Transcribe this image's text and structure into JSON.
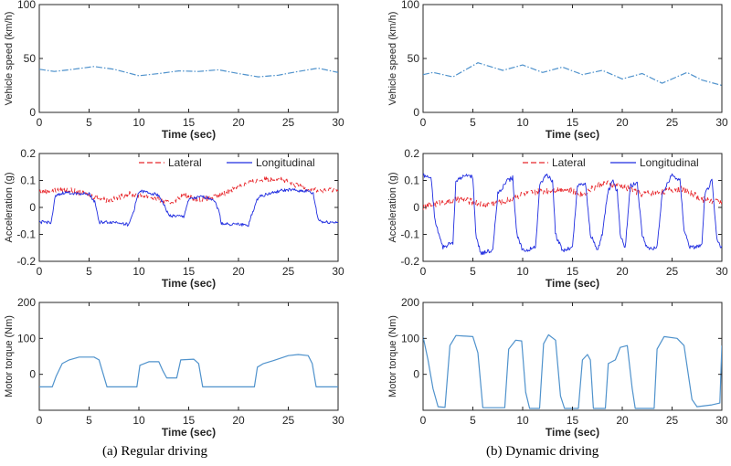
{
  "chart_data": [
    {
      "id": "a1",
      "type": "line",
      "xlabel": "Time (sec)",
      "ylabel": "Vehicle speed (km/h)",
      "xlim": [
        0,
        30
      ],
      "ylim": [
        0,
        100
      ],
      "xticks": [
        0,
        5,
        10,
        15,
        20,
        25,
        30
      ],
      "yticks": [
        0,
        50,
        100
      ],
      "series": [
        {
          "color": "#4f92cc",
          "dash": "dashdot",
          "noise": 0,
          "points": [
            [
              0,
              40
            ],
            [
              1.5,
              38
            ],
            [
              3,
              39.5
            ],
            [
              5.5,
              42.5
            ],
            [
              7.5,
              40
            ],
            [
              10,
              34
            ],
            [
              12,
              36
            ],
            [
              14,
              38.5
            ],
            [
              16,
              38
            ],
            [
              18,
              39.5
            ],
            [
              20,
              36
            ],
            [
              22,
              33
            ],
            [
              24,
              34.5
            ],
            [
              26,
              38
            ],
            [
              28,
              41
            ],
            [
              30,
              37
            ]
          ]
        }
      ]
    },
    {
      "id": "a2",
      "type": "line",
      "xlabel": "Time (sec)",
      "ylabel": "Acceleration (g)",
      "xlim": [
        0,
        30
      ],
      "ylim": [
        -0.2,
        0.2
      ],
      "xticks": [
        0,
        5,
        10,
        15,
        20,
        25,
        30
      ],
      "yticks": [
        -0.2,
        -0.1,
        0,
        0.1,
        0.2
      ],
      "legend": {
        "position": "top-right",
        "entries": [
          "Lateral",
          "Longitudinal"
        ]
      },
      "series": [
        {
          "name": "Lateral",
          "color": "#e8262b",
          "dash": "dashed",
          "noise": 0.01,
          "points": [
            [
              0,
              0.06
            ],
            [
              3,
              0.065
            ],
            [
              5,
              0.045
            ],
            [
              7,
              0.025
            ],
            [
              9,
              0.05
            ],
            [
              11,
              0.04
            ],
            [
              13,
              0.015
            ],
            [
              14.5,
              0.045
            ],
            [
              16,
              0.03
            ],
            [
              18,
              0.04
            ],
            [
              20,
              0.08
            ],
            [
              22,
              0.1
            ],
            [
              24,
              0.11
            ],
            [
              25.5,
              0.085
            ],
            [
              27,
              0.07
            ],
            [
              28.5,
              0.06
            ],
            [
              30,
              0.07
            ]
          ]
        },
        {
          "name": "Longitudinal",
          "color": "#1f2ce0",
          "dash": "solid",
          "noise": 0.006,
          "points": [
            [
              0,
              -0.055
            ],
            [
              1.2,
              -0.055
            ],
            [
              1.6,
              0.04
            ],
            [
              2.5,
              0.055
            ],
            [
              5,
              0.05
            ],
            [
              5.6,
              0.02
            ],
            [
              6,
              -0.055
            ],
            [
              8,
              -0.055
            ],
            [
              9,
              -0.065
            ],
            [
              9.5,
              -0.01
            ],
            [
              10,
              0.06
            ],
            [
              11,
              0.055
            ],
            [
              12,
              0.045
            ],
            [
              12.5,
              0.01
            ],
            [
              13,
              -0.03
            ],
            [
              14.5,
              -0.035
            ],
            [
              15,
              0.03
            ],
            [
              16.5,
              0.04
            ],
            [
              17.5,
              0.03
            ],
            [
              18,
              -0.01
            ],
            [
              18.3,
              -0.06
            ],
            [
              21,
              -0.065
            ],
            [
              21.4,
              -0.02
            ],
            [
              22,
              0.04
            ],
            [
              24,
              0.06
            ],
            [
              25,
              0.065
            ],
            [
              27,
              0.06
            ],
            [
              27.5,
              0.05
            ],
            [
              28,
              -0.045
            ],
            [
              28.5,
              -0.055
            ],
            [
              30,
              -0.055
            ]
          ]
        }
      ]
    },
    {
      "id": "a3",
      "type": "line",
      "xlabel": "Time (sec)",
      "ylabel": "Motor torque (Nm)",
      "xlim": [
        0,
        30
      ],
      "ylim": [
        -100,
        200
      ],
      "xticks": [
        0,
        5,
        10,
        15,
        20,
        25,
        30
      ],
      "yticks": [
        0,
        100,
        200
      ],
      "series": [
        {
          "color": "#4f92cc",
          "dash": "solid",
          "noise": 0,
          "points": [
            [
              0,
              -35
            ],
            [
              1.3,
              -35
            ],
            [
              1.7,
              -5
            ],
            [
              2.3,
              30
            ],
            [
              3,
              40
            ],
            [
              4,
              48
            ],
            [
              5.5,
              48
            ],
            [
              6,
              40
            ],
            [
              6.8,
              -35
            ],
            [
              9.8,
              -35
            ],
            [
              10.1,
              25
            ],
            [
              11,
              35
            ],
            [
              12,
              35
            ],
            [
              12.4,
              10
            ],
            [
              12.8,
              -10
            ],
            [
              13.8,
              -10
            ],
            [
              14.2,
              40
            ],
            [
              15.5,
              42
            ],
            [
              16,
              30
            ],
            [
              16.4,
              -35
            ],
            [
              21.6,
              -35
            ],
            [
              21.9,
              20
            ],
            [
              22.5,
              30
            ],
            [
              23.5,
              38
            ],
            [
              25,
              52
            ],
            [
              26,
              55
            ],
            [
              27,
              52
            ],
            [
              27.4,
              30
            ],
            [
              27.8,
              -35
            ],
            [
              30,
              -35
            ]
          ]
        }
      ]
    },
    {
      "id": "b1",
      "type": "line",
      "xlabel": "Time (sec)",
      "ylabel": "Vehicle speed (km/h)",
      "xlim": [
        0,
        30
      ],
      "ylim": [
        0,
        100
      ],
      "xticks": [
        0,
        5,
        10,
        15,
        20,
        25,
        30
      ],
      "yticks": [
        0,
        50,
        100
      ],
      "series": [
        {
          "color": "#4f92cc",
          "dash": "dashdot",
          "noise": 0,
          "points": [
            [
              0,
              35
            ],
            [
              1,
              37
            ],
            [
              3,
              33
            ],
            [
              5.5,
              46
            ],
            [
              8,
              39
            ],
            [
              10,
              44
            ],
            [
              12,
              37
            ],
            [
              14,
              42
            ],
            [
              16,
              35
            ],
            [
              18,
              39
            ],
            [
              20,
              31
            ],
            [
              22,
              36
            ],
            [
              24,
              27
            ],
            [
              26.5,
              37
            ],
            [
              28,
              30
            ],
            [
              30,
              25
            ]
          ]
        }
      ]
    },
    {
      "id": "b2",
      "type": "line",
      "xlabel": "Time (sec)",
      "ylabel": "Acceleration (g)",
      "xlim": [
        0,
        30
      ],
      "ylim": [
        -0.2,
        0.2
      ],
      "xticks": [
        0,
        5,
        10,
        15,
        20,
        25,
        30
      ],
      "yticks": [
        -0.2,
        -0.1,
        0,
        0.1,
        0.2
      ],
      "legend": {
        "position": "top-right",
        "entries": [
          "Lateral",
          "Longitudinal"
        ]
      },
      "series": [
        {
          "name": "Lateral",
          "color": "#e8262b",
          "dash": "dashed",
          "noise": 0.012,
          "points": [
            [
              0,
              0.0
            ],
            [
              2,
              0.02
            ],
            [
              4,
              0.03
            ],
            [
              6,
              0.01
            ],
            [
              8,
              0.02
            ],
            [
              10,
              0.05
            ],
            [
              12,
              0.06
            ],
            [
              14,
              0.07
            ],
            [
              16,
              0.05
            ],
            [
              18,
              0.09
            ],
            [
              20,
              0.08
            ],
            [
              22,
              0.05
            ],
            [
              24,
              0.06
            ],
            [
              26,
              0.07
            ],
            [
              28,
              0.03
            ],
            [
              30,
              0.02
            ]
          ]
        },
        {
          "name": "Longitudinal",
          "color": "#1f2ce0",
          "dash": "solid",
          "noise": 0.008,
          "points": [
            [
              0,
              0.12
            ],
            [
              0.8,
              0.11
            ],
            [
              1.2,
              -0.05
            ],
            [
              2,
              -0.15
            ],
            [
              3,
              -0.13
            ],
            [
              3.3,
              0.1
            ],
            [
              4.5,
              0.12
            ],
            [
              5,
              0.11
            ],
            [
              5.3,
              -0.1
            ],
            [
              5.8,
              -0.17
            ],
            [
              7,
              -0.16
            ],
            [
              7.5,
              0.05
            ],
            [
              8.5,
              0.1
            ],
            [
              9,
              0.11
            ],
            [
              9.4,
              -0.1
            ],
            [
              10,
              -0.16
            ],
            [
              11.3,
              -0.15
            ],
            [
              11.7,
              0.08
            ],
            [
              12.3,
              0.12
            ],
            [
              13,
              0.1
            ],
            [
              13.3,
              -0.1
            ],
            [
              14,
              -0.16
            ],
            [
              15,
              -0.15
            ],
            [
              15.5,
              0.08
            ],
            [
              16.3,
              0.09
            ],
            [
              16.8,
              -0.1
            ],
            [
              17.5,
              -0.16
            ],
            [
              18,
              -0.1
            ],
            [
              18.5,
              0.05
            ],
            [
              19,
              0.1
            ],
            [
              19.5,
              0.06
            ],
            [
              19.8,
              -0.1
            ],
            [
              20.3,
              -0.15
            ],
            [
              20.8,
              0.08
            ],
            [
              21.5,
              0.09
            ],
            [
              22,
              -0.1
            ],
            [
              22.5,
              -0.15
            ],
            [
              23.5,
              -0.15
            ],
            [
              24,
              0.05
            ],
            [
              25,
              0.12
            ],
            [
              25.8,
              0.1
            ],
            [
              26.2,
              -0.08
            ],
            [
              26.8,
              -0.15
            ],
            [
              28,
              -0.14
            ],
            [
              28.3,
              0.05
            ],
            [
              29,
              0.1
            ],
            [
              29.5,
              -0.12
            ],
            [
              30,
              -0.15
            ]
          ]
        }
      ]
    },
    {
      "id": "b3",
      "type": "line",
      "xlabel": "Time (sec)",
      "ylabel": "Motor torque (Nm)",
      "xlim": [
        0,
        30
      ],
      "ylim": [
        -100,
        200
      ],
      "xticks": [
        0,
        5,
        10,
        15,
        20,
        25,
        30
      ],
      "yticks": [
        0,
        100,
        200
      ],
      "series": [
        {
          "color": "#4f92cc",
          "dash": "solid",
          "noise": 0,
          "points": [
            [
              0,
              105
            ],
            [
              0.5,
              40
            ],
            [
              1,
              -40
            ],
            [
              1.5,
              -90
            ],
            [
              2.2,
              -92
            ],
            [
              2.7,
              80
            ],
            [
              3.3,
              108
            ],
            [
              5,
              105
            ],
            [
              5.5,
              60
            ],
            [
              6,
              -93
            ],
            [
              8.2,
              -93
            ],
            [
              8.6,
              70
            ],
            [
              9.3,
              95
            ],
            [
              9.9,
              93
            ],
            [
              10.3,
              -50
            ],
            [
              10.7,
              -95
            ],
            [
              11.7,
              -95
            ],
            [
              12.1,
              85
            ],
            [
              12.6,
              110
            ],
            [
              13.3,
              95
            ],
            [
              13.8,
              -60
            ],
            [
              14.2,
              -95
            ],
            [
              15.6,
              -95
            ],
            [
              16,
              40
            ],
            [
              16.5,
              55
            ],
            [
              16.8,
              40
            ],
            [
              17.1,
              -95
            ],
            [
              18.3,
              -95
            ],
            [
              18.6,
              30
            ],
            [
              19.3,
              40
            ],
            [
              19.8,
              75
            ],
            [
              20.5,
              80
            ],
            [
              21,
              -40
            ],
            [
              21.3,
              -95
            ],
            [
              23.2,
              -95
            ],
            [
              23.5,
              70
            ],
            [
              24.2,
              105
            ],
            [
              25.5,
              100
            ],
            [
              26.2,
              80
            ],
            [
              27,
              -70
            ],
            [
              27.5,
              -90
            ],
            [
              29,
              -85
            ],
            [
              29.8,
              -80
            ],
            [
              30,
              80
            ]
          ]
        }
      ]
    }
  ],
  "captions": {
    "left": "(a)  Regular driving",
    "right": "(b)  Dynamic driving"
  }
}
